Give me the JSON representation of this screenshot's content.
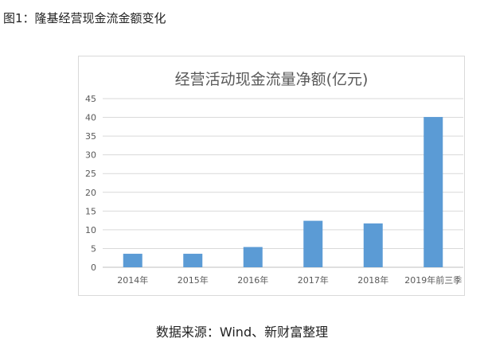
{
  "figure_caption": "图1：隆基经营现金流金额变化",
  "source_note": "数据来源：Wind、新财富整理",
  "chart_data": {
    "type": "bar",
    "title": "经营活动现金流量净额(亿元)",
    "categories": [
      "2014年",
      "2015年",
      "2016年",
      "2017年",
      "2018年",
      "2019年前三季"
    ],
    "values": [
      3.6,
      3.6,
      5.4,
      12.4,
      11.7,
      40.1
    ],
    "ylim": [
      0,
      45
    ],
    "yticks": [
      0,
      5,
      10,
      15,
      20,
      25,
      30,
      35,
      40,
      45
    ],
    "grid": true,
    "bar_color": "#5b9bd5"
  }
}
